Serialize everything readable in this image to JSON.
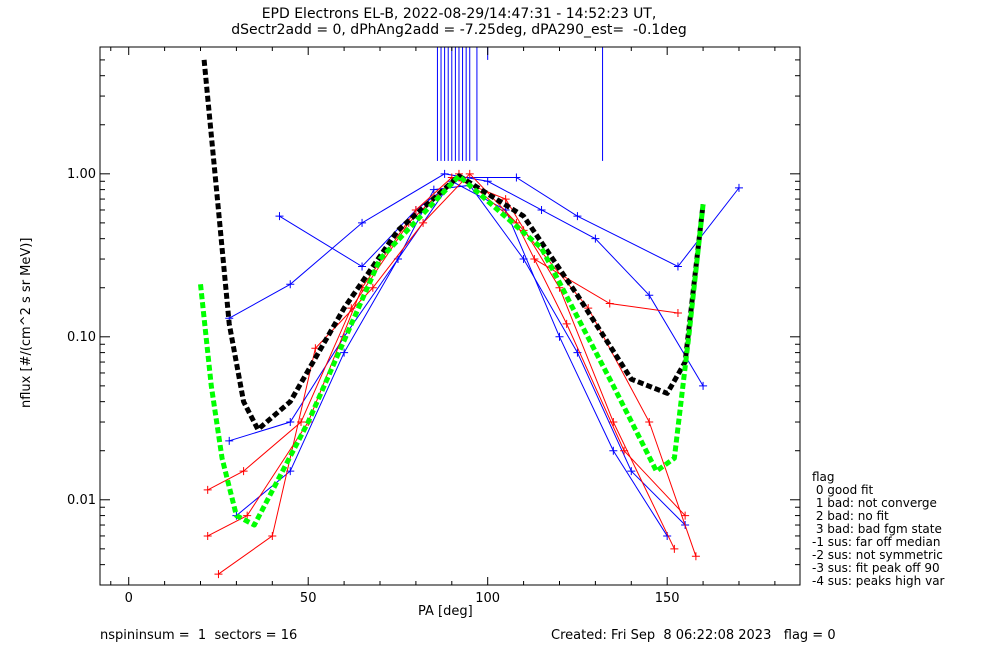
{
  "chart_data": {
    "type": "line",
    "title": "EPD Electrons EL-B, 2022-08-29/14:47:31 - 14:52:23 UT,",
    "subtitle": "dSectr2add = 0, dPhAng2add = -7.25deg, dPA290_est=  -0.1deg",
    "xlabel": "PA [deg]",
    "ylabel": "nflux [#/(cm^2 s sr MeV)]",
    "xlim": [
      -8,
      187
    ],
    "ylim": [
      0.003,
      6.0
    ],
    "yscale": "log",
    "xticks": [
      "0",
      "50",
      "100",
      "150"
    ],
    "yticks": [
      "0.01",
      "0.10",
      "1.00"
    ],
    "grid": false,
    "series": [
      {
        "color": "#0000ff",
        "values": [
          [
            28,
            0.13
          ],
          [
            45,
            0.21
          ],
          [
            65,
            0.5
          ],
          [
            88,
            1.0
          ],
          [
            100,
            0.9
          ],
          [
            115,
            0.6
          ],
          [
            130,
            0.4
          ],
          [
            145,
            0.18
          ],
          [
            160,
            0.05
          ]
        ]
      },
      {
        "color": "#0000ff",
        "values": [
          [
            42,
            0.55
          ],
          [
            65,
            0.27
          ],
          [
            80,
            0.6
          ],
          [
            92,
            0.95
          ],
          [
            108,
            0.95
          ],
          [
            125,
            0.55
          ],
          [
            153,
            0.27
          ],
          [
            170,
            0.82
          ]
        ]
      },
      {
        "color": "#0000ff",
        "values": [
          [
            28,
            0.023
          ],
          [
            45,
            0.03
          ],
          [
            60,
            0.1
          ],
          [
            75,
            0.3
          ],
          [
            85,
            0.8
          ],
          [
            95,
            0.85
          ],
          [
            110,
            0.3
          ],
          [
            125,
            0.08
          ],
          [
            140,
            0.015
          ],
          [
            155,
            0.007
          ]
        ]
      },
      {
        "color": "#0000ff",
        "values": [
          [
            30,
            0.008
          ],
          [
            45,
            0.015
          ],
          [
            60,
            0.08
          ],
          [
            75,
            0.3
          ],
          [
            90,
            0.9
          ],
          [
            105,
            0.6
          ],
          [
            120,
            0.1
          ],
          [
            135,
            0.02
          ],
          [
            150,
            0.006
          ]
        ]
      },
      {
        "color": "#ff0000",
        "values": [
          [
            22,
            0.0115
          ],
          [
            32,
            0.015
          ],
          [
            48,
            0.03
          ],
          [
            62,
            0.15
          ],
          [
            78,
            0.5
          ],
          [
            92,
            1.0
          ],
          [
            108,
            0.5
          ],
          [
            122,
            0.12
          ],
          [
            138,
            0.02
          ],
          [
            155,
            0.008
          ]
        ]
      },
      {
        "color": "#ff0000",
        "values": [
          [
            22,
            0.006
          ],
          [
            33,
            0.008
          ],
          [
            50,
            0.03
          ],
          [
            65,
            0.2
          ],
          [
            80,
            0.6
          ],
          [
            90,
            0.95
          ],
          [
            105,
            0.7
          ],
          [
            120,
            0.2
          ],
          [
            135,
            0.03
          ],
          [
            152,
            0.005
          ]
        ]
      },
      {
        "color": "#ff0000",
        "values": [
          [
            25,
            0.0035
          ],
          [
            40,
            0.006
          ],
          [
            52,
            0.085
          ],
          [
            68,
            0.2
          ],
          [
            82,
            0.5
          ],
          [
            95,
            1.0
          ],
          [
            110,
            0.45
          ],
          [
            128,
            0.15
          ],
          [
            145,
            0.03
          ],
          [
            158,
            0.0045
          ]
        ]
      },
      {
        "color": "#ff0000",
        "values": [
          [
            113,
            0.3
          ],
          [
            134,
            0.16
          ],
          [
            153,
            0.14
          ]
        ]
      }
    ],
    "fits": [
      {
        "color": "#000000",
        "values": [
          [
            21,
            5.0
          ],
          [
            25,
            0.6
          ],
          [
            28,
            0.12
          ],
          [
            32,
            0.04
          ],
          [
            36,
            0.027
          ],
          [
            45,
            0.04
          ],
          [
            60,
            0.15
          ],
          [
            75,
            0.45
          ],
          [
            92,
            0.97
          ],
          [
            110,
            0.55
          ],
          [
            125,
            0.18
          ],
          [
            140,
            0.055
          ],
          [
            150,
            0.045
          ],
          [
            155,
            0.07
          ],
          [
            160,
            0.65
          ]
        ]
      },
      {
        "color": "#00ff00",
        "values": [
          [
            20,
            0.21
          ],
          [
            23,
            0.05
          ],
          [
            26,
            0.018
          ],
          [
            30,
            0.008
          ],
          [
            35,
            0.007
          ],
          [
            50,
            0.03
          ],
          [
            70,
            0.3
          ],
          [
            92,
            0.97
          ],
          [
            115,
            0.35
          ],
          [
            135,
            0.05
          ],
          [
            147,
            0.015
          ],
          [
            152,
            0.018
          ],
          [
            156,
            0.1
          ],
          [
            160,
            0.65
          ]
        ]
      }
    ],
    "spikes": {
      "color": "#0000ff",
      "x": [
        86,
        87,
        88,
        89,
        90,
        91,
        92,
        93,
        94,
        95,
        97,
        100,
        132
      ],
      "bottom": [
        1.2,
        1.2,
        1.2,
        1.2,
        1.2,
        1.2,
        1.2,
        1.2,
        1.2,
        1.2,
        1.2,
        5.0,
        1.2
      ]
    },
    "legend": {
      "title": "flag",
      "entries": [
        " 0 good fit",
        " 1 bad: not converge",
        " 2 bad: no fit",
        " 3 bad: bad fgm state",
        "-1 sus: far off median",
        "-2 sus: not symmetric",
        "-3 sus: fit peak off 90",
        "-4 sus: peaks high var"
      ]
    },
    "footer": {
      "left": "nspininsum =  1  sectors = 16",
      "right": "Created: Fri Sep  8 06:22:08 2023   flag = 0"
    }
  }
}
